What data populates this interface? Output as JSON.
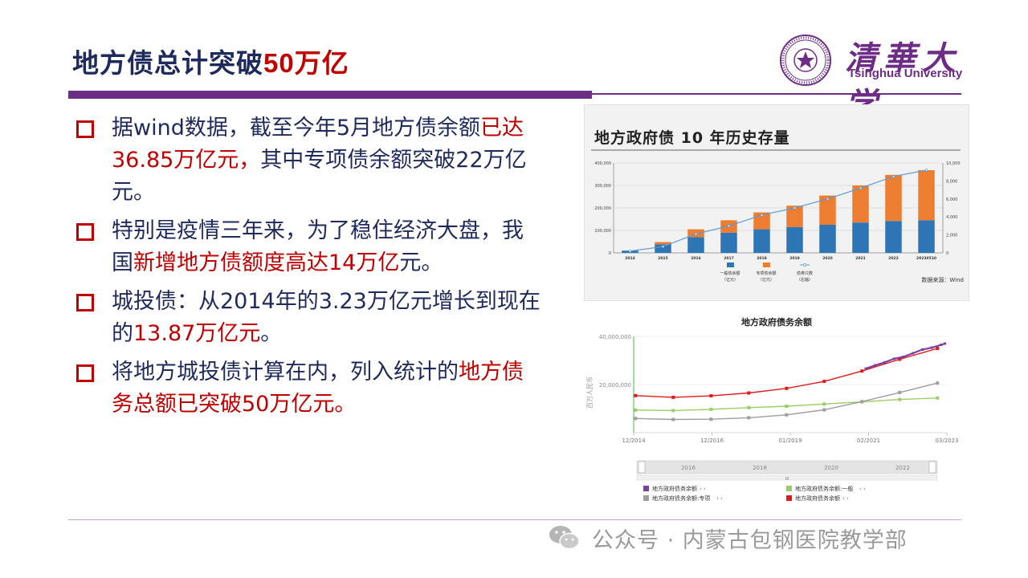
{
  "slide": {
    "title_prefix": "地方债总计突破",
    "title_highlight": "50万亿",
    "logo": {
      "cn": "清華大学",
      "en": "Tsinghua University"
    },
    "footer": {
      "text": "公众号 · 内蒙古包钢医院教学部"
    },
    "colors": {
      "accent": "#6d2d87",
      "highlight": "#c00000",
      "body_text": "#1f2a5c"
    }
  },
  "bullets": [
    {
      "segments": [
        {
          "text": "据wind数据，截至今年5月地方债余额",
          "red": false
        },
        {
          "text": "已达36.85万亿元，",
          "red": true
        },
        {
          "text": "其中专项债余额突破22万亿元。",
          "red": false
        }
      ]
    },
    {
      "segments": [
        {
          "text": "特别是疫情三年来，为了稳住经济大盘，我国",
          "red": false
        },
        {
          "text": "新增地方债额度高达14万亿",
          "red": true
        },
        {
          "text": "元。",
          "red": false
        }
      ]
    },
    {
      "segments": [
        {
          "text": "城投债：从2014年的3.23万亿元增长到现在的",
          "red": false
        },
        {
          "text": "13.87万亿元",
          "red": true
        },
        {
          "text": "。",
          "red": false
        }
      ]
    },
    {
      "segments": [
        {
          "text": "将地方城投债计算在内，列入统计的",
          "red": false
        },
        {
          "text": "地方债务总额已突破50万亿元。",
          "red": true
        }
      ]
    }
  ],
  "chart_data": [
    {
      "type": "bar",
      "title": "地方政府债 10 年历史存量",
      "stacked": true,
      "categories": [
        "2014",
        "2015",
        "2016",
        "2017",
        "2018",
        "2019",
        "2020",
        "2021",
        "2022",
        "20230510"
      ],
      "series": [
        {
          "name": "一般债余额（亿元）",
          "color": "#2e75b6",
          "values": [
            10000,
            38000,
            70000,
            90000,
            105000,
            115000,
            125000,
            135000,
            142000,
            145000
          ]
        },
        {
          "name": "专项债余额（亿元）",
          "color": "#ed7d31",
          "values": [
            0,
            10000,
            35000,
            55000,
            75000,
            95000,
            130000,
            165000,
            205000,
            223000
          ]
        },
        {
          "name": "债券只数（右轴）",
          "color": "#5b9bd5",
          "axis": "right",
          "values": [
            200,
            700,
            2100,
            3000,
            4200,
            5000,
            6000,
            7200,
            8500,
            9200
          ]
        }
      ],
      "ylim": [
        0,
        400000
      ],
      "y_ticks": [
        "0",
        "100,000",
        "200,000",
        "300,000",
        "400,000"
      ],
      "y2lim": [
        0,
        10000
      ],
      "y2_ticks": [
        "0",
        "2,000",
        "4,000",
        "6,000",
        "8,000",
        "10,000"
      ],
      "legend_labels": [
        {
          "line1": "一般债余额",
          "line2": "（亿元）"
        },
        {
          "line1": "专项债余额",
          "line2": "（亿元）"
        },
        {
          "line1": "债券只数",
          "line2": "（右轴）"
        }
      ],
      "source": "数据来源：Wind",
      "legend_position": "bottom"
    },
    {
      "type": "line",
      "title": "地方政府债务余额",
      "ylabel": "百万人民币",
      "x_ticks": [
        "12/2014",
        "12/2016",
        "01/2019",
        "02/2021",
        "03/2023"
      ],
      "x_range": [
        2014.9,
        2023.2
      ],
      "ylim": [
        0,
        40000000
      ],
      "y_ticks": [
        "40,000,000",
        "20,000,000"
      ],
      "y_tick_values": [
        40000000,
        20000000
      ],
      "navigator_ticks": [
        "2016",
        "2018",
        "2020",
        "2022"
      ],
      "navigator_handle": "III",
      "series": [
        {
          "name": "地方政府债务余额",
          "color": "#e31a1c",
          "x": [
            2014.95,
            2015.95,
            2016.95,
            2017.95,
            2018.95,
            2019.95,
            2020.95,
            2021.95,
            2022.95
          ],
          "y": [
            15400000,
            14700000,
            15300000,
            16500000,
            18400000,
            21300000,
            25600000,
            30500000,
            35000000
          ]
        },
        {
          "name": "地方政府债务余额:一般",
          "color": "#9ccc65",
          "x": [
            2014.95,
            2015.95,
            2016.95,
            2017.95,
            2018.95,
            2019.95,
            2020.95,
            2021.95,
            2022.95
          ],
          "y": [
            9400000,
            9200000,
            9700000,
            10400000,
            11000000,
            11900000,
            12800000,
            13800000,
            14400000
          ]
        },
        {
          "name": "地方政府债务余额:专项",
          "color": "#9e9e9e",
          "x": [
            2014.95,
            2015.95,
            2016.95,
            2017.95,
            2018.95,
            2019.95,
            2020.95,
            2021.95,
            2022.95
          ],
          "y": [
            5900000,
            5500000,
            5600000,
            6200000,
            7400000,
            9500000,
            12900000,
            16700000,
            20600000
          ]
        },
        {
          "name": "地方政府债务余额",
          "color": "#7b3fa0",
          "x": [
            2021.05,
            2021.3,
            2021.55,
            2021.8,
            2022.05,
            2022.3,
            2022.55,
            2022.8,
            2023.05,
            2023.15
          ],
          "y": [
            26600000,
            28000000,
            29200000,
            30700000,
            31500000,
            33000000,
            34500000,
            35300000,
            36500000,
            37000000
          ]
        }
      ],
      "legend_labels": [
        {
          "label": "地方政府债务余额",
          "color": "#7b3fa0"
        },
        {
          "label": "地方政府债务余额:一般",
          "color": "#9ccc65"
        },
        {
          "label": "地方政府债务余额:专项",
          "color": "#9e9e9e"
        },
        {
          "label": "地方政府债务余额",
          "color": "#e31a1c"
        }
      ],
      "legend_arrows": "‹ ›",
      "legend_position": "bottom"
    }
  ]
}
